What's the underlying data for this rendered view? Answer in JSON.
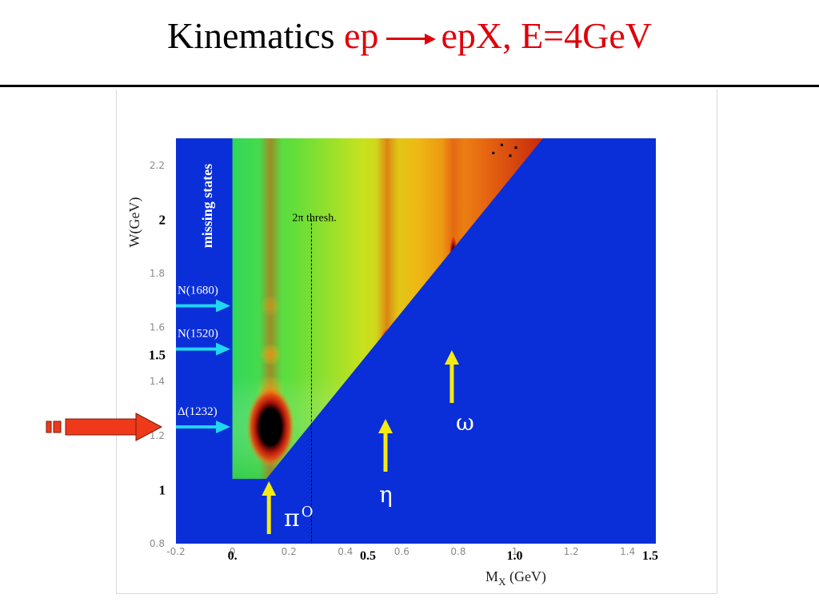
{
  "slide": {
    "title_black": "Kinematics",
    "title_red_1": "ep",
    "title_red_2": "epX,  E=4GeV"
  },
  "colors": {
    "title_red": "#e0000a",
    "background_blue": "#0a2fd8",
    "label_cyan": "#21d6f0",
    "marker_yellow": "#f5ea12",
    "big_arrow_red": "#ee3a1a"
  },
  "chart_data": {
    "type": "heatmap",
    "xlabel_main": "M",
    "xlabel_sub": "X",
    "xlabel_unit": "(GeV)",
    "ylabel": "W(GeV)",
    "xlim": [
      -0.2,
      1.5
    ],
    "ylim": [
      0.8,
      2.3
    ],
    "x_ticks": [
      "-0.2",
      "0",
      "0.2",
      "0.4",
      "0.6",
      "0.8",
      "1",
      "1.2",
      "1.4"
    ],
    "x_tick_values": [
      -0.2,
      0,
      0.2,
      0.4,
      0.6,
      0.8,
      1.0,
      1.2,
      1.4
    ],
    "y_ticks": [
      "0.8",
      "1.2",
      "1.4",
      "1.6",
      "1.8",
      "2.2"
    ],
    "y_tick_values": [
      0.8,
      1.2,
      1.4,
      1.6,
      1.8,
      2.2
    ],
    "x_overlay_labels": [
      {
        "text": "0.",
        "x": 0.0
      },
      {
        "text": "0.5",
        "x": 0.48
      },
      {
        "text": "1.0",
        "x": 1.0
      },
      {
        "text": "1.5",
        "x": 1.48
      }
    ],
    "y_overlay_labels": [
      {
        "text": "2",
        "y": 2.0
      },
      {
        "text": "1.5",
        "y": 1.5
      },
      {
        "text": "1",
        "y": 1.0
      }
    ],
    "kinematic_edge": {
      "w_min": 1.04,
      "mx_at_w_min": 0.12,
      "mx_at_top": 1.1,
      "w_at_top": 2.3
    },
    "threshold_line": {
      "x": 0.28,
      "label_main": "2",
      "label_pi": "π",
      "label_rest": " thresh."
    },
    "missing_states_label": "missing states",
    "resonances": [
      {
        "name": "N(1680)",
        "w": 1.68
      },
      {
        "name": "N(1520)",
        "w": 1.52
      },
      {
        "name": "Δ(1232)",
        "w": 1.232
      }
    ],
    "mesons": [
      {
        "name": "πO",
        "symbol": "π",
        "sup": "O",
        "mass": 0.135
      },
      {
        "name": "η",
        "symbol": "η",
        "sup": "",
        "mass": 0.548
      },
      {
        "name": "ω",
        "symbol": "ω",
        "sup": "",
        "mass": 0.783
      }
    ],
    "grid": false
  }
}
